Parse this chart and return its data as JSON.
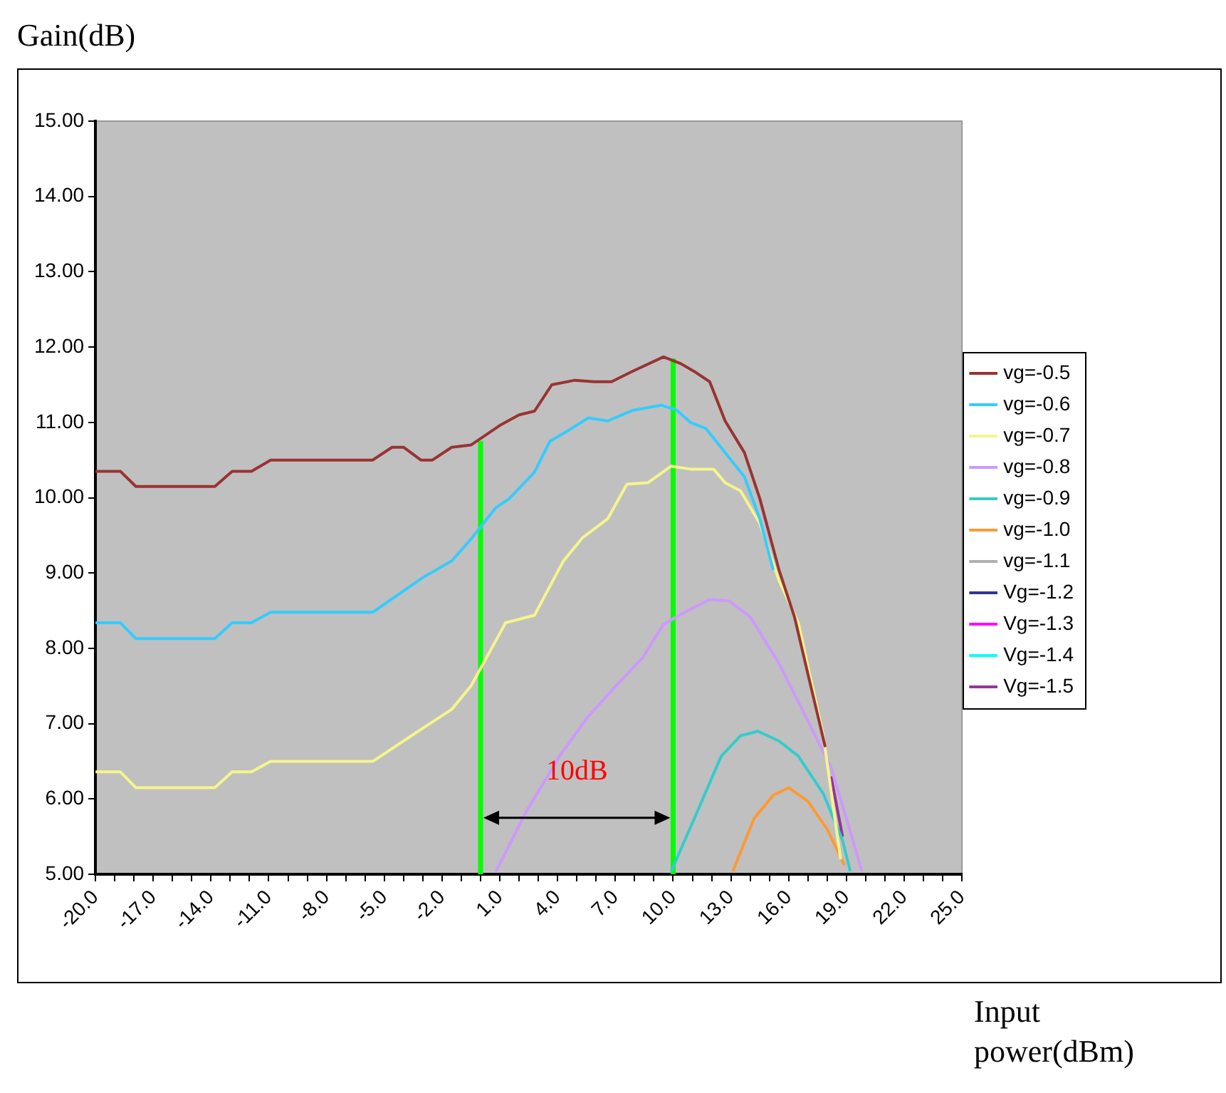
{
  "chart_data": {
    "type": "line",
    "ylabel": "Gain(dB)",
    "xlabel": "Input power(dBm)",
    "xlim": [
      -20,
      25
    ],
    "ylim": [
      5,
      15
    ],
    "yticks": [
      {
        "value": 5,
        "label": "5.00"
      },
      {
        "value": 6,
        "label": "6.00"
      },
      {
        "value": 7,
        "label": "7.00"
      },
      {
        "value": 8,
        "label": "8.00"
      },
      {
        "value": 9,
        "label": "9.00"
      },
      {
        "value": 10,
        "label": "10.00"
      },
      {
        "value": 11,
        "label": "11.00"
      },
      {
        "value": 12,
        "label": "12.00"
      },
      {
        "value": 13,
        "label": "13.00"
      },
      {
        "value": 14,
        "label": "14.00"
      },
      {
        "value": 15,
        "label": "15.00"
      }
    ],
    "xticks": [
      {
        "value": -20,
        "label": "-20.0"
      },
      {
        "value": -19,
        "label": null
      },
      {
        "value": -18,
        "label": null
      },
      {
        "value": -17,
        "label": "-17.0"
      },
      {
        "value": -16,
        "label": null
      },
      {
        "value": -15,
        "label": null
      },
      {
        "value": -14,
        "label": "-14.0"
      },
      {
        "value": -13,
        "label": null
      },
      {
        "value": -12,
        "label": null
      },
      {
        "value": -11,
        "label": "-11.0"
      },
      {
        "value": -10,
        "label": null
      },
      {
        "value": -9,
        "label": null
      },
      {
        "value": -8,
        "label": "-8.0"
      },
      {
        "value": -7,
        "label": null
      },
      {
        "value": -6,
        "label": null
      },
      {
        "value": -5,
        "label": "-5.0"
      },
      {
        "value": -4,
        "label": null
      },
      {
        "value": -3,
        "label": null
      },
      {
        "value": -2,
        "label": "-2.0"
      },
      {
        "value": -1,
        "label": null
      },
      {
        "value": 0,
        "label": null
      },
      {
        "value": 1,
        "label": "1.0"
      },
      {
        "value": 2,
        "label": null
      },
      {
        "value": 3,
        "label": null
      },
      {
        "value": 4,
        "label": "4.0"
      },
      {
        "value": 5,
        "label": null
      },
      {
        "value": 6,
        "label": null
      },
      {
        "value": 7,
        "label": "7.0"
      },
      {
        "value": 8,
        "label": null
      },
      {
        "value": 9,
        "label": null
      },
      {
        "value": 10,
        "label": "10.0"
      },
      {
        "value": 11,
        "label": null
      },
      {
        "value": 12,
        "label": null
      },
      {
        "value": 13,
        "label": "13.0"
      },
      {
        "value": 14,
        "label": null
      },
      {
        "value": 15,
        "label": null
      },
      {
        "value": 16,
        "label": "16.0"
      },
      {
        "value": 17,
        "label": null
      },
      {
        "value": 18,
        "label": null
      },
      {
        "value": 19,
        "label": "19.0"
      },
      {
        "value": 20,
        "label": null
      },
      {
        "value": 21,
        "label": null
      },
      {
        "value": 22,
        "label": "22.0"
      },
      {
        "value": 23,
        "label": null
      },
      {
        "value": 24,
        "label": null
      },
      {
        "value": 25,
        "label": "25.0"
      }
    ],
    "legend": "right",
    "marker": "none",
    "line_style": "solid",
    "series": [
      {
        "name": "vg=-0.5",
        "color": "#993333",
        "x": [
          -20,
          -18.7,
          -17.9,
          -13.8,
          -12.9,
          -11.9,
          -10.9,
          -5.6,
          -4.6,
          -4,
          -3.1,
          -2.5,
          -1.5,
          -0.5,
          1,
          2,
          2.8,
          3.7,
          4.9,
          5.9,
          6.8,
          7.9,
          9.5,
          10.4,
          11.2,
          11.9,
          12.7,
          13.7,
          14.5,
          15.5,
          16.3,
          17,
          17.9
        ],
        "values": [
          10.35,
          10.35,
          10.15,
          10.15,
          10.35,
          10.35,
          10.5,
          10.5,
          10.67,
          10.67,
          10.5,
          10.5,
          10.67,
          10.7,
          10.96,
          11.1,
          11.15,
          11.5,
          11.56,
          11.54,
          11.54,
          11.68,
          11.87,
          11.78,
          11.66,
          11.54,
          11.02,
          10.6,
          9.99,
          9.04,
          8.42,
          7.66,
          6.69
        ]
      },
      {
        "name": "vg=-0.6",
        "color": "#33ccff",
        "x": [
          -20,
          -18.7,
          -17.9,
          -13.8,
          -12.9,
          -11.9,
          -10.9,
          -5.6,
          -3,
          -1.5,
          -0.5,
          0.8,
          1.5,
          2.8,
          3.6,
          4.6,
          5.6,
          6.6,
          7.9,
          9.4,
          10.2,
          10.9,
          11.7,
          12.7,
          13.7,
          14.5,
          15.2
        ],
        "values": [
          8.34,
          8.34,
          8.13,
          8.13,
          8.34,
          8.34,
          8.48,
          8.48,
          8.94,
          9.16,
          9.45,
          9.87,
          9.99,
          10.34,
          10.75,
          10.9,
          11.06,
          11.02,
          11.16,
          11.23,
          11.16,
          11.0,
          10.92,
          10.6,
          10.28,
          9.72,
          9.04
        ]
      },
      {
        "name": "vg=-0.7",
        "color": "#f5f58c",
        "x": [
          -20,
          -18.7,
          -17.9,
          -13.8,
          -12.9,
          -11.9,
          -10.9,
          -5.6,
          -3,
          -1.5,
          -0.5,
          1,
          1.3,
          2.8,
          4.3,
          5.3,
          6.6,
          7.6,
          8.7,
          9.9,
          10.9,
          12.1,
          12.7,
          13.5,
          14.5,
          15.5,
          16.5,
          17.8,
          18.7
        ],
        "values": [
          6.36,
          6.36,
          6.15,
          6.15,
          6.36,
          6.36,
          6.5,
          6.5,
          6.94,
          7.19,
          7.5,
          8.2,
          8.34,
          8.44,
          9.16,
          9.47,
          9.72,
          10.18,
          10.2,
          10.42,
          10.38,
          10.38,
          10.2,
          10.09,
          9.66,
          8.9,
          8.34,
          6.84,
          5.2
        ]
      },
      {
        "name": "vg=-0.8",
        "color": "#cc99ff",
        "x": [
          0.8,
          2.3,
          4.1,
          5.6,
          7.1,
          8.4,
          9.5,
          10.6,
          11.9,
          12.9,
          14,
          15.5,
          16.7,
          18.2,
          19,
          19.8
        ],
        "values": [
          5.04,
          5.8,
          6.57,
          7.1,
          7.52,
          7.87,
          8.32,
          8.48,
          8.65,
          8.63,
          8.42,
          7.8,
          7.19,
          6.42,
          5.74,
          5.04
        ]
      },
      {
        "name": "vg=-0.9",
        "color": "#33cccc",
        "x": [
          9.9,
          11.2,
          12.5,
          13.5,
          14.4,
          15.5,
          16.5,
          17.8,
          18.8,
          19.2
        ],
        "values": [
          5.04,
          5.8,
          6.57,
          6.84,
          6.9,
          6.77,
          6.57,
          6.07,
          5.45,
          5.04
        ]
      },
      {
        "name": "vg=-1.0",
        "color": "#ff9933",
        "x": [
          13.1,
          14.2,
          15.2,
          16,
          17,
          18,
          18.9
        ],
        "values": [
          5.04,
          5.74,
          6.05,
          6.15,
          5.97,
          5.6,
          5.12
        ]
      },
      {
        "name": "vg=-1.1",
        "color": "#b0b0b0"
      },
      {
        "name": "Vg=-1.2",
        "color": "#333399"
      },
      {
        "name": "Vg=-1.3",
        "color": "#ff00ff"
      },
      {
        "name": "Vg=-1.4",
        "color": "#00ffff"
      },
      {
        "name": "Vg=-1.5",
        "color": "#993399",
        "x": [
          18.2,
          18.5,
          18.8
        ],
        "values": [
          6.3,
          5.9,
          5.5
        ]
      },
      {
        "color": "#00ff00",
        "x": [
          0,
          0
        ],
        "values": [
          5,
          10.75
        ]
      },
      {
        "color": "#00ff00",
        "x": [
          10,
          10
        ],
        "values": [
          5,
          11.85
        ]
      }
    ],
    "annotations": [
      "10dB"
    ]
  }
}
